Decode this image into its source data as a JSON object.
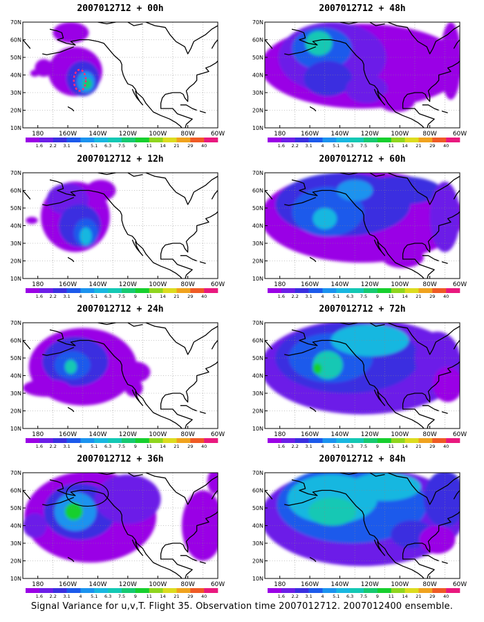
{
  "figure": {
    "caption": "Signal Variance for u,v,T. Flight 35. Observation time 2007012712. 2007012400 ensemble."
  },
  "colorbar": {
    "labels": [
      "1.6",
      "2.2",
      "3.1",
      "4",
      "5.1",
      "6.3",
      "7.5",
      "9",
      "11",
      "14",
      "21",
      "29",
      "40"
    ],
    "colors": [
      "#9a00e6",
      "#6c1fe8",
      "#3a2fe0",
      "#1c5aeb",
      "#1b93ef",
      "#19b7e0",
      "#14c8b4",
      "#17c971",
      "#17cf2e",
      "#8fd51e",
      "#dcdc1f",
      "#f0a21e",
      "#ef5a25",
      "#e9197e"
    ]
  },
  "axes": {
    "x_ticks": [
      "180",
      "160W",
      "140W",
      "120W",
      "100W",
      "80W",
      "60W"
    ],
    "y_ticks": [
      "10N",
      "20N",
      "30N",
      "40N",
      "50N",
      "60N",
      "70N"
    ]
  },
  "panels": [
    {
      "title": "2007012712 + 00h"
    },
    {
      "title": "2007012712 + 12h"
    },
    {
      "title": "2007012712 + 24h"
    },
    {
      "title": "2007012712 + 36h"
    },
    {
      "title": "2007012712 + 48h"
    },
    {
      "title": "2007012712 + 60h"
    },
    {
      "title": "2007012712 + 72h"
    },
    {
      "title": "2007012712 + 84h"
    }
  ]
}
